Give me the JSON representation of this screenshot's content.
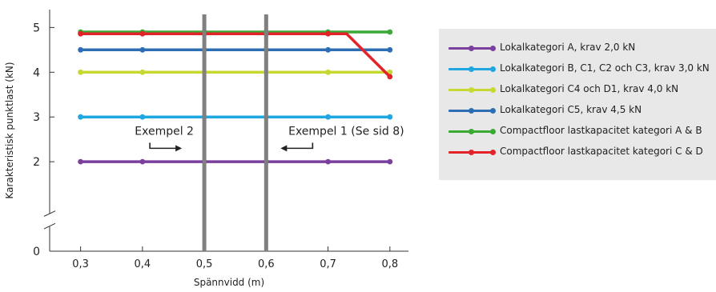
{
  "chart_data": {
    "type": "line",
    "xlabel": "Spännvidd (m)",
    "ylabel": "Karakteristisk punktlast (kN)",
    "x": [
      0.3,
      0.4,
      0.5,
      0.6,
      0.7,
      0.8
    ],
    "x_tick_labels": [
      "0,3",
      "0,4",
      "0,5",
      "0,6",
      "0,7",
      "0,8"
    ],
    "xlim": [
      0.25,
      0.83
    ],
    "y_ticks": [
      0,
      2,
      3,
      4,
      5
    ],
    "y_tick_labels": [
      "0",
      "2",
      "3",
      "4",
      "5"
    ],
    "ylim": [
      0,
      5.4
    ],
    "axis_break": "between 0 and 2",
    "grid": false,
    "legend_position": "right",
    "series": [
      {
        "name": "Lokalkategori A, krav 2,0 kN",
        "color": "#7b3f9e",
        "values": [
          2.0,
          2.0,
          2.0,
          2.0,
          2.0,
          2.0
        ]
      },
      {
        "name": "Lokalkategori B, C1, C2 och C3, krav 3,0 kN",
        "color": "#1fa7e1",
        "values": [
          3.0,
          3.0,
          3.0,
          3.0,
          3.0,
          3.0
        ]
      },
      {
        "name": "Lokalkategori C4 och D1, krav 4,0 kN",
        "color": "#c8d832",
        "values": [
          4.0,
          4.0,
          4.0,
          4.0,
          4.0,
          4.0
        ]
      },
      {
        "name": "Lokalkategori C5, krav 4,5 kN",
        "color": "#2d6db4",
        "values": [
          4.5,
          4.5,
          4.5,
          4.5,
          4.5,
          4.5
        ]
      },
      {
        "name": "Compactfloor lastkapacitet kategori A & B",
        "color": "#3aaa35",
        "values": [
          4.9,
          4.9,
          4.9,
          4.9,
          4.9,
          4.9
        ]
      },
      {
        "name": "Compactfloor lastkapacitet kategori C & D",
        "color": "#e3232a",
        "points": [
          [
            0.3,
            4.86
          ],
          [
            0.4,
            4.86
          ],
          [
            0.5,
            4.86
          ],
          [
            0.6,
            4.86
          ],
          [
            0.7,
            4.86
          ],
          [
            0.8,
            3.9
          ]
        ],
        "extra_breakpoint": [
          0.73,
          4.86
        ]
      }
    ],
    "reference_lines": [
      {
        "x": 0.5,
        "color": "#808080"
      },
      {
        "x": 0.6,
        "color": "#808080"
      }
    ],
    "annotations": [
      {
        "text": "Exempel 2",
        "arrow": "right",
        "points_to_x": 0.5
      },
      {
        "text": "Exempel 1 (Se sid 8)",
        "arrow": "left",
        "points_to_x": 0.6
      }
    ]
  }
}
